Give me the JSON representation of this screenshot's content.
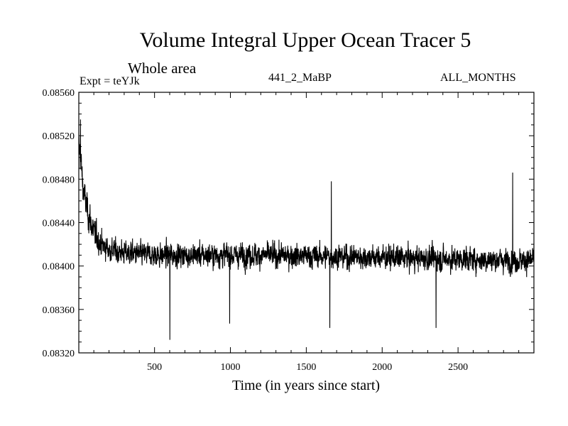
{
  "chart_data": {
    "type": "line",
    "title": "Volume Integral Upper Ocean Tracer 5",
    "subtitle": "Whole area",
    "expt_label": "Expt = teYJk",
    "center_label": "441_2_MaBP",
    "right_label": "ALL_MONTHS",
    "xlabel": "Time (in years since start)",
    "ylabel": "",
    "xlim": [
      1,
      3000
    ],
    "ylim": [
      0.0832,
      0.0856
    ],
    "x_ticks": [
      500,
      1000,
      1500,
      2000,
      2500
    ],
    "x_tick_labels": [
      "500",
      "1000",
      "1500",
      "2000",
      "2500"
    ],
    "y_ticks": [
      0.0832,
      0.0836,
      0.084,
      0.0844,
      0.0848,
      0.0852,
      0.0856
    ],
    "y_tick_labels": [
      "0.08320",
      "0.08360",
      "0.08400",
      "0.08440",
      "0.08480",
      "0.08520",
      "0.08560"
    ],
    "series": [
      {
        "name": "Volume Integral Upper Ocean Tracer 5",
        "color": "#000000",
        "trend": {
          "x": [
            1,
            10,
            30,
            60,
            100,
            150,
            200,
            300,
            500,
            800,
            1200,
            3000
          ],
          "y": [
            0.0851,
            0.08505,
            0.0847,
            0.0845,
            0.0843,
            0.0842,
            0.08415,
            0.08412,
            0.0841,
            0.0841,
            0.0841,
            0.08405
          ]
        },
        "noise_amplitude": 0.00013,
        "extremes": [
          {
            "x": 12,
            "y": 0.08535
          },
          {
            "x": 601,
            "y": 0.08332
          },
          {
            "x": 995,
            "y": 0.08347
          },
          {
            "x": 1655,
            "y": 0.08343
          },
          {
            "x": 1665,
            "y": 0.08478
          },
          {
            "x": 2355,
            "y": 0.08343
          },
          {
            "x": 2860,
            "y": 0.08486
          }
        ]
      }
    ]
  }
}
